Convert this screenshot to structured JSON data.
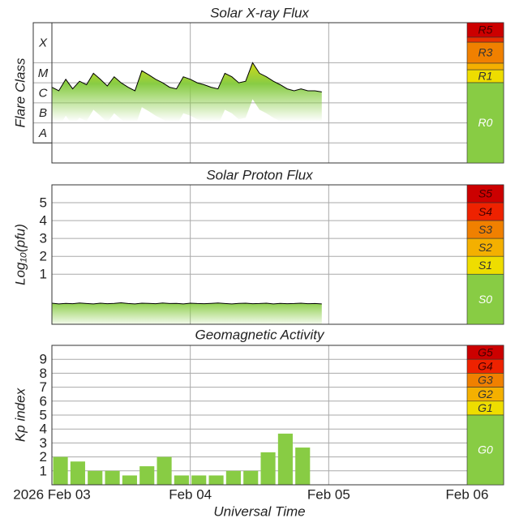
{
  "chart_data": [
    {
      "type": "line",
      "title": "Solar X-ray Flux",
      "y_label": "Flare Class",
      "log_scale": true,
      "ylim": [
        1e-09,
        0.01
      ],
      "yticks": [
        {
          "value": 1e-08,
          "label": "A"
        },
        {
          "value": 1e-07,
          "label": "B"
        },
        {
          "value": 1e-06,
          "label": "C"
        },
        {
          "value": 1e-05,
          "label": "M"
        },
        {
          "value": 0.0001,
          "label": "X"
        }
      ],
      "x": [
        0,
        0.05,
        0.1,
        0.15,
        0.2,
        0.25,
        0.3,
        0.35,
        0.4,
        0.45,
        0.5,
        0.55,
        0.6,
        0.65,
        0.7,
        0.75,
        0.8,
        0.85,
        0.9,
        0.95,
        1,
        1.05,
        1.1,
        1.15,
        1.2,
        1.25,
        1.3,
        1.35,
        1.4,
        1.45,
        1.5,
        1.55,
        1.6,
        1.65,
        1.7,
        1.75,
        1.8,
        1.85,
        1.9,
        1.95
      ],
      "series": [
        {
          "color": "#000000",
          "values": [
            6e-06,
            4e-06,
            1.5e-05,
            5e-06,
            1.2e-05,
            8e-06,
            3e-05,
            1.5e-05,
            7e-06,
            2e-05,
            1e-05,
            6e-06,
            4e-06,
            4e-05,
            2.5e-05,
            1.5e-05,
            1e-05,
            6e-06,
            5e-06,
            2e-05,
            1.5e-05,
            1e-05,
            8e-06,
            6e-06,
            5e-06,
            3e-05,
            2e-05,
            1e-05,
            1.2e-05,
            0.0001,
            3e-05,
            2e-05,
            1.2e-05,
            8e-06,
            5e-06,
            4e-06,
            5e-06,
            4e-06,
            4e-06,
            3.5e-06
          ]
        }
      ],
      "scale": [
        {
          "label": "R5",
          "color": "#cc0000"
        },
        {
          "label": "R3",
          "color": "#f08000"
        },
        {
          "label": "R1",
          "color": "#eedd00"
        },
        {
          "label": "R0",
          "color": "#88cc44"
        }
      ]
    },
    {
      "type": "line",
      "title": "Solar Proton Flux",
      "y_label": "Log₁₀(pfu)",
      "ylim": [
        -1.8,
        6
      ],
      "yticks": [
        1,
        2,
        3,
        4,
        5
      ],
      "x": [
        0,
        0.05,
        0.1,
        0.15,
        0.2,
        0.25,
        0.3,
        0.35,
        0.4,
        0.45,
        0.5,
        0.55,
        0.6,
        0.65,
        0.7,
        0.75,
        0.8,
        0.85,
        0.9,
        0.95,
        1,
        1.05,
        1.1,
        1.15,
        1.2,
        1.25,
        1.3,
        1.35,
        1.4,
        1.45,
        1.5,
        1.55,
        1.6,
        1.65,
        1.7,
        1.75,
        1.8,
        1.85,
        1.9,
        1.95
      ],
      "series": [
        {
          "color": "#000000",
          "values": [
            -0.62,
            -0.66,
            -0.63,
            -0.65,
            -0.61,
            -0.64,
            -0.66,
            -0.62,
            -0.65,
            -0.63,
            -0.6,
            -0.64,
            -0.66,
            -0.62,
            -0.63,
            -0.65,
            -0.61,
            -0.64,
            -0.63,
            -0.66,
            -0.62,
            -0.64,
            -0.65,
            -0.63,
            -0.61,
            -0.64,
            -0.66,
            -0.63,
            -0.62,
            -0.65,
            -0.64,
            -0.62,
            -0.66,
            -0.63,
            -0.65,
            -0.64,
            -0.62,
            -0.65,
            -0.64,
            -0.66
          ]
        }
      ],
      "scale": [
        {
          "label": "S5",
          "color": "#cc0000"
        },
        {
          "label": "S4",
          "color": "#ee2200"
        },
        {
          "label": "S3",
          "color": "#f08000"
        },
        {
          "label": "S2",
          "color": "#f4b000"
        },
        {
          "label": "S1",
          "color": "#eedd00"
        },
        {
          "label": "S0",
          "color": "#88cc44"
        }
      ]
    },
    {
      "type": "bar",
      "title": "Geomagnetic Activity",
      "y_label": "Kp index",
      "x_label": "Universal Time",
      "ylim": [
        0,
        10
      ],
      "yticks": [
        1,
        2,
        3,
        4,
        5,
        6,
        7,
        8,
        9
      ],
      "xlim": [
        0,
        3
      ],
      "xticks": [
        {
          "value": 0,
          "label": "2026 Feb 03"
        },
        {
          "value": 1,
          "label": "Feb 04"
        },
        {
          "value": 2,
          "label": "Feb 05"
        },
        {
          "value": 3,
          "label": "Feb 06"
        }
      ],
      "x": [
        0,
        0.125,
        0.25,
        0.375,
        0.5,
        0.625,
        0.75,
        0.875,
        1,
        1.125,
        1.25,
        1.375,
        1.5,
        1.625,
        1.75
      ],
      "color": "#88cc44",
      "values": [
        2,
        1.67,
        1,
        1,
        0.67,
        1.33,
        2,
        0.67,
        0.67,
        0.67,
        1,
        1,
        2.33,
        3.67,
        2.67
      ],
      "scale": [
        {
          "label": "G5",
          "color": "#cc0000"
        },
        {
          "label": "G4",
          "color": "#ee2200"
        },
        {
          "label": "G3",
          "color": "#f08000"
        },
        {
          "label": "G2",
          "color": "#f4b000"
        },
        {
          "label": "G1",
          "color": "#eedd00"
        },
        {
          "label": "G0",
          "color": "#88cc44"
        }
      ]
    }
  ]
}
